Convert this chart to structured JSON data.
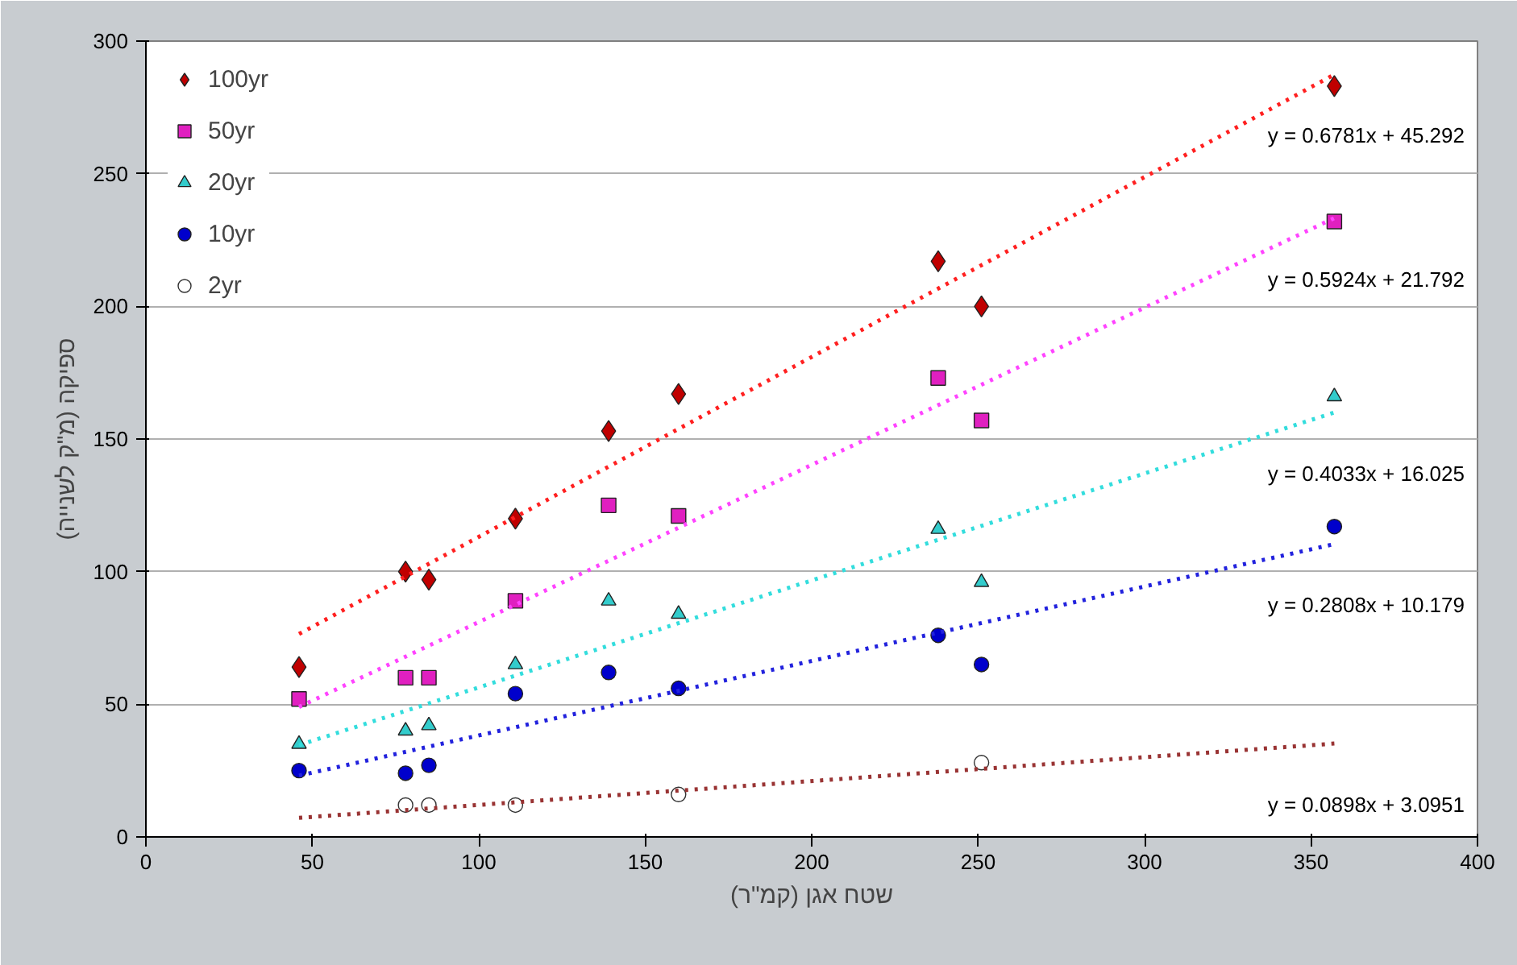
{
  "chart_data": {
    "type": "scatter",
    "xlabel": "שטח אגן (קמ\"ר)",
    "ylabel": "ספיקה (מ\"ק לשנייה)",
    "x": [
      46,
      78,
      85,
      111,
      139,
      160,
      238,
      251,
      357
    ],
    "series": [
      {
        "name": "100yr",
        "color": "#c00000",
        "marker": "diamond",
        "values": [
          64,
          100,
          97,
          120,
          153,
          167,
          217,
          200,
          283
        ]
      },
      {
        "name": "50yr",
        "color": "#e020c0",
        "marker": "square",
        "values": [
          52,
          60,
          60,
          89,
          125,
          121,
          173,
          157,
          232
        ]
      },
      {
        "name": "20yr",
        "color": "#33cccc",
        "marker": "triangle",
        "values": [
          35,
          40,
          42,
          65,
          89,
          84,
          116,
          96,
          166
        ]
      },
      {
        "name": "10yr",
        "color": "#0000cc",
        "marker": "circle",
        "values": [
          25,
          24,
          27,
          54,
          62,
          56,
          76,
          65,
          117
        ]
      },
      {
        "name": "2yr",
        "color": "#ffffff",
        "marker": "circle",
        "x": [
          78,
          85,
          111,
          160,
          251
        ],
        "values": [
          12,
          12,
          12,
          16,
          28
        ]
      },
      {
        "type": "line",
        "line_style": "dotted",
        "color": "#ff2020",
        "x": [
          46,
          357
        ],
        "values": [
          76.5,
          287.4
        ]
      },
      {
        "type": "line",
        "line_style": "dotted",
        "color": "#ff44ff",
        "x": [
          46,
          357
        ],
        "values": [
          49.0,
          233.3
        ]
      },
      {
        "type": "line",
        "line_style": "dotted",
        "color": "#33dddd",
        "x": [
          46,
          357
        ],
        "values": [
          34.6,
          160.0
        ]
      },
      {
        "type": "line",
        "line_style": "dotted",
        "color": "#2222dd",
        "x": [
          46,
          357
        ],
        "values": [
          23.1,
          110.4
        ]
      },
      {
        "type": "line",
        "line_style": "dotted",
        "color": "#993333",
        "x": [
          46,
          357
        ],
        "values": [
          7.2,
          35.2
        ]
      }
    ],
    "annotations": [
      "y = 0.6781x + 45.292",
      "y = 0.5924x + 21.792",
      "y = 0.4033x + 16.025",
      "y = 0.2808x + 10.179",
      "y = 0.0898x + 3.0951"
    ],
    "xlim": [
      0,
      400
    ],
    "ylim": [
      0,
      300
    ],
    "xticks": [
      0,
      50,
      100,
      150,
      200,
      250,
      300,
      350,
      400
    ],
    "yticks": [
      0,
      50,
      100,
      150,
      200,
      250,
      300
    ],
    "grid": "y",
    "legend": "top left"
  }
}
